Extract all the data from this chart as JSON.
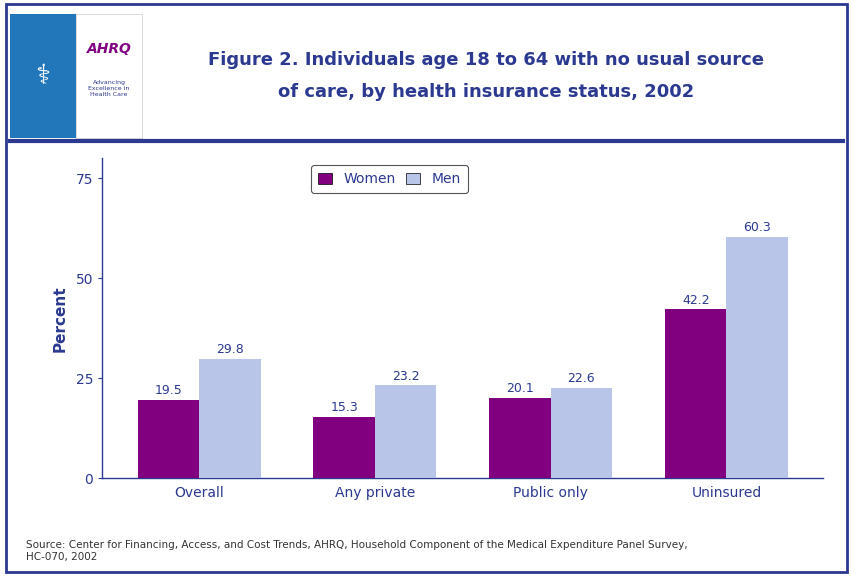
{
  "categories": [
    "Overall",
    "Any private",
    "Public only",
    "Uninsured"
  ],
  "women_values": [
    19.5,
    15.3,
    20.1,
    42.2
  ],
  "men_values": [
    29.8,
    23.2,
    22.6,
    60.3
  ],
  "women_color": "#800080",
  "men_color": "#b8c4e8",
  "ylabel": "Percent",
  "yticks": [
    0,
    25,
    50,
    75
  ],
  "ylim": [
    0,
    80
  ],
  "bar_width": 0.35,
  "legend_labels": [
    "Women",
    "Men"
  ],
  "title_line1": "Figure 2. Individuals age 18 to 64 with no usual source",
  "title_line2": "of care, by health insurance status, 2002",
  "source_text": "Source: Center for Financing, Access, and Cost Trends, AHRQ, Household Component of the Medical Expenditure Panel Survey,\nHC-070, 2002",
  "title_color": "#2b3990",
  "axis_label_color": "#2b3990",
  "tick_label_color": "#2b3990",
  "value_label_color": "#2b3990",
  "border_color": "#2b3990",
  "separator_color": "#2b3990",
  "background_color": "#ffffff",
  "plot_bg_color": "#ffffff",
  "outer_border_color": "#2b3990",
  "header_bg_color": "#ffffff"
}
